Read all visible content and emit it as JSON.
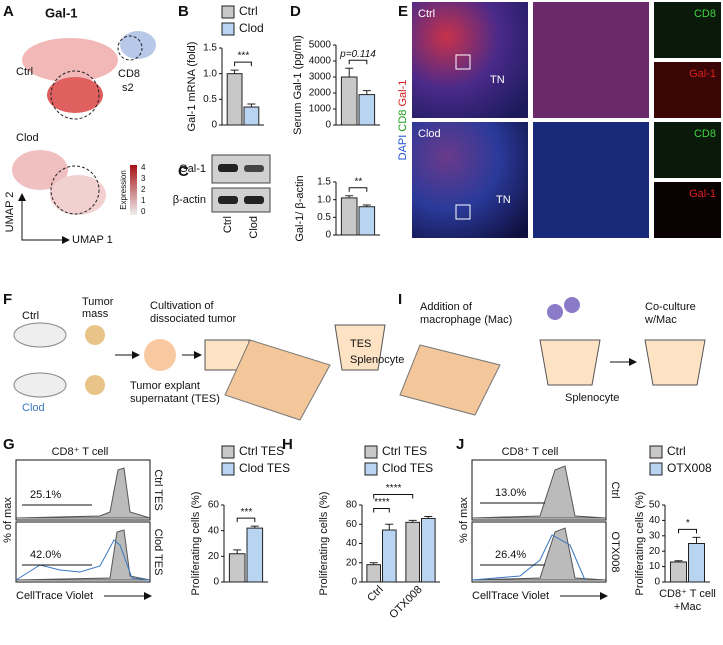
{
  "panel_labels": [
    "A",
    "B",
    "C",
    "D",
    "E",
    "F",
    "G",
    "H",
    "I",
    "J"
  ],
  "A": {
    "title": "Gal-1",
    "ctrl": "Ctrl",
    "clod": "Clod",
    "cluster": [
      "CD8",
      "s2"
    ],
    "x_axis": "UMAP 1",
    "y_axis": "UMAP 2",
    "legend_title": "Expression",
    "legend_ticks": [
      "4",
      "3",
      "2",
      "1",
      "0"
    ]
  },
  "C": {
    "bands": [
      "Gal-1",
      "β-actin"
    ],
    "lanes": [
      "Ctrl",
      "Clod"
    ]
  },
  "E": {
    "rows": [
      "Ctrl",
      "Clod"
    ],
    "stains": [
      "DAPI",
      "CD8",
      "Gal-1"
    ],
    "region": "TN",
    "channels": [
      "CD8",
      "Gal-1"
    ]
  },
  "F": {
    "ctrl": "Ctrl",
    "clod": "Clod",
    "tumor": [
      "Tumor",
      "mass"
    ],
    "cultivation": [
      "Cultivation of",
      "dissociated tumor"
    ],
    "explant": [
      "Tumor explant",
      "supernatant (TES)"
    ],
    "tes": "TES",
    "splenocyte": "Splenocyte"
  },
  "I": {
    "addition": [
      "Addition of",
      "macrophage (Mac)"
    ],
    "coculture": [
      "Co-culture",
      "w/Mac"
    ],
    "splenocyte": "Splenocyte"
  },
  "G": {
    "title": "CD8⁺ T cell",
    "rows": [
      "Ctrl TES",
      "Clod TES"
    ],
    "gates": [
      "25.1%",
      "42.0%"
    ],
    "y_axis": "% of max",
    "x_axis": "CellTrace Violet"
  },
  "J": {
    "title": "CD8⁺ T cell",
    "rows": [
      "Ctrl",
      "OTX008"
    ],
    "gates": [
      "13.0%",
      "26.4%"
    ],
    "y_axis": "% of max",
    "x_axis": "CellTrace Violet"
  },
  "chart_data": [
    {
      "type": "bar",
      "y_label": "Gal-1 mRNA (fold)",
      "ylim": [
        0,
        1.5
      ],
      "yticks": [
        0,
        0.5,
        {
          "value": 1,
          "label": "1.0"
        },
        1.5
      ],
      "significance": [
        "***"
      ],
      "series": [
        {
          "name": "Ctrl",
          "color": "#c8c8c8",
          "values": [
            1.0
          ],
          "errors": [
            0.07
          ]
        },
        {
          "name": "Clod",
          "color": "#b9d4f1",
          "values": [
            0.35
          ],
          "errors": [
            0.06
          ]
        }
      ]
    },
    {
      "type": "bar",
      "y_label": "Serum Gal-1 (pg/ml)",
      "ylim": [
        0,
        5000
      ],
      "yticks": [
        0,
        1000,
        2000,
        3000,
        4000,
        5000
      ],
      "significance": [
        "p=0.114"
      ],
      "series": [
        {
          "color": "#c8c8c8",
          "values": [
            3000
          ],
          "errors": [
            550
          ]
        },
        {
          "color": "#b9d4f1",
          "values": [
            1900
          ],
          "errors": [
            250
          ]
        }
      ]
    },
    {
      "type": "bar",
      "y_label": "Gal-1/ β-actin",
      "ylim": [
        0,
        1.5
      ],
      "yticks": [
        0,
        0.5,
        {
          "value": 1,
          "label": "1.0"
        },
        1.5
      ],
      "significance": [
        "**"
      ],
      "series": [
        {
          "color": "#c8c8c8",
          "values": [
            1.05
          ],
          "errors": [
            0.06
          ]
        },
        {
          "color": "#b9d4f1",
          "values": [
            0.8
          ],
          "errors": [
            0.05
          ]
        }
      ]
    },
    {
      "type": "bar",
      "y_label": "Proliferating cells (%)",
      "ylim": [
        0,
        60
      ],
      "yticks": [
        0,
        20,
        40,
        60
      ],
      "significance": [
        "***"
      ],
      "series": [
        {
          "name": "Ctrl TES",
          "color": "#c8c8c8",
          "values": [
            22
          ],
          "errors": [
            3
          ]
        },
        {
          "name": "Clod TES",
          "color": "#b9d4f1",
          "values": [
            42
          ],
          "errors": [
            1.5
          ]
        }
      ]
    },
    {
      "type": "bar",
      "y_label": "Proliferating cells (%)",
      "categories": [
        "Ctrl",
        "OTX008"
      ],
      "ylim": [
        0,
        80
      ],
      "yticks": [
        0,
        20,
        40,
        60,
        80
      ],
      "significance": [
        "****",
        "****"
      ],
      "series": [
        {
          "name": "Ctrl TES",
          "color": "#c8c8c8",
          "values": [
            18,
            62
          ],
          "errors": [
            2,
            2
          ]
        },
        {
          "name": "Clod TES",
          "color": "#b9d4f1",
          "values": [
            54,
            66
          ],
          "errors": [
            6,
            2
          ]
        }
      ]
    },
    {
      "type": "bar",
      "y_label": "Proliferating cells (%)",
      "x_label": [
        "CD8⁺ T cell",
        "+Mac"
      ],
      "ylim": [
        0,
        50
      ],
      "yticks": [
        0,
        10,
        20,
        30,
        40,
        50
      ],
      "significance": [
        "*"
      ],
      "series": [
        {
          "name": "Ctrl",
          "color": "#c8c8c8",
          "values": [
            13
          ],
          "errors": [
            0.8
          ]
        },
        {
          "name": "OTX008",
          "color": "#b9d4f1",
          "values": [
            25
          ],
          "errors": [
            4
          ]
        }
      ]
    }
  ]
}
